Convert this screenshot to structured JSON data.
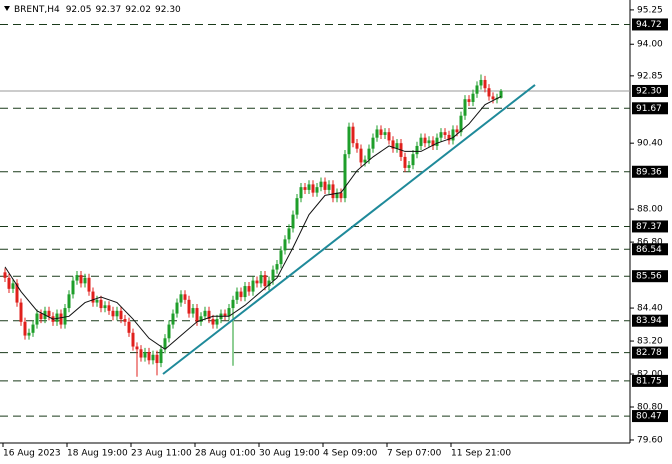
{
  "chart_data": {
    "type": "candlestick",
    "title": "BRENT,H4",
    "header_ohlc": [
      "92.05",
      "92.37",
      "92.02",
      "92.30"
    ],
    "categories": [
      "16 Aug 2023",
      null,
      null,
      null,
      null,
      null,
      null,
      null,
      null,
      null,
      null,
      null,
      null,
      null,
      null,
      null,
      "18 Aug 19:00",
      null,
      null,
      null,
      null,
      null,
      null,
      null,
      null,
      null,
      null,
      null,
      null,
      null,
      null,
      null,
      "23 Aug 11:00",
      null,
      null,
      null,
      null,
      null,
      null,
      null,
      null,
      null,
      null,
      null,
      null,
      null,
      null,
      null,
      "28 Aug 01:00",
      null,
      null,
      null,
      null,
      null,
      null,
      null,
      null,
      null,
      null,
      null,
      null,
      null,
      null,
      null,
      "30 Aug 19:00",
      null,
      null,
      null,
      null,
      null,
      null,
      null,
      null,
      null,
      null,
      null,
      null,
      null,
      null,
      null,
      "4 Sep 09:00",
      null,
      null,
      null,
      null,
      null,
      null,
      null,
      null,
      null,
      null,
      null,
      null,
      null,
      null,
      null,
      "7 Sep 07:00",
      null,
      null,
      null,
      null,
      null,
      null,
      null,
      null,
      null,
      null,
      null,
      null,
      null,
      null,
      null,
      "11 Sep 21:00",
      null,
      null,
      null,
      null,
      null,
      null,
      null,
      null,
      null,
      null,
      null,
      null
    ],
    "open": [
      85.7,
      85.5,
      85.1,
      85.3,
      84.6,
      83.9,
      83.4,
      83.5,
      83.8,
      84.2,
      84.0,
      84.3,
      84.1,
      83.9,
      84.2,
      83.8,
      84.4,
      84.9,
      85.4,
      85.6,
      85.3,
      85.5,
      85.0,
      84.6,
      84.7,
      84.4,
      84.5,
      84.3,
      84.1,
      84.3,
      84.0,
      83.9,
      83.5,
      83.0,
      82.9,
      82.6,
      82.8,
      82.5,
      82.7,
      82.4,
      82.9,
      83.3,
      83.8,
      84.2,
      84.6,
      84.9,
      84.7,
      84.2,
      84.4,
      83.9,
      84.1,
      84.3,
      84.0,
      83.8,
      84.0,
      84.2,
      84.1,
      84.4,
      84.7,
      85.0,
      84.8,
      85.2,
      85.0,
      85.4,
      85.3,
      85.6,
      85.2,
      85.4,
      85.8,
      86.0,
      86.5,
      86.9,
      87.3,
      87.8,
      88.4,
      88.8,
      88.7,
      88.9,
      88.6,
      88.8,
      89.0,
      88.7,
      88.9,
      88.4,
      88.6,
      88.4,
      90.0,
      91.0,
      90.4,
      90.2,
      89.7,
      89.8,
      90.2,
      90.6,
      90.9,
      90.7,
      90.8,
      90.5,
      90.2,
      90.4,
      89.9,
      89.5,
      89.6,
      90.0,
      90.3,
      90.6,
      90.4,
      90.5,
      90.3,
      90.6,
      90.8,
      90.7,
      90.5,
      90.9,
      90.8,
      91.4,
      92.0,
      91.9,
      92.2,
      92.5,
      92.7,
      92.4,
      92.1,
      92.0,
      92.05
    ],
    "high": [
      85.85,
      85.65,
      85.45,
      85.45,
      84.75,
      84.05,
      83.65,
      83.95,
      84.35,
      84.35,
      84.45,
      84.45,
      84.25,
      84.35,
      84.35,
      84.55,
      85.05,
      85.55,
      85.75,
      85.75,
      85.65,
      85.65,
      85.15,
      84.85,
      84.85,
      84.65,
      84.65,
      84.45,
      84.45,
      84.45,
      84.15,
      84.05,
      83.65,
      83.15,
      83.05,
      82.95,
      82.95,
      82.85,
      82.85,
      83.05,
      83.45,
      83.95,
      84.35,
      84.75,
      85.05,
      85.05,
      84.85,
      84.55,
      84.55,
      84.25,
      84.45,
      84.45,
      84.15,
      84.15,
      84.35,
      84.35,
      84.55,
      84.85,
      85.15,
      85.15,
      85.35,
      85.35,
      85.55,
      85.55,
      85.75,
      85.75,
      85.55,
      85.95,
      86.15,
      86.65,
      87.05,
      87.45,
      87.95,
      88.55,
      88.95,
      88.95,
      89.05,
      89.05,
      88.95,
      89.15,
      89.15,
      89.05,
      89.05,
      88.75,
      88.75,
      90.15,
      91.15,
      91.15,
      90.55,
      90.35,
      89.95,
      90.35,
      90.75,
      91.05,
      91.05,
      90.95,
      90.95,
      90.65,
      90.55,
      90.55,
      90.05,
      89.75,
      90.15,
      90.45,
      90.75,
      90.75,
      90.65,
      90.65,
      90.75,
      90.95,
      90.95,
      90.85,
      91.05,
      91.05,
      91.55,
      92.15,
      92.15,
      92.35,
      92.65,
      92.9,
      92.85,
      92.55,
      92.25,
      92.2,
      92.37
    ],
    "low": [
      85.35,
      84.95,
      84.95,
      84.45,
      83.75,
      83.25,
      83.25,
      83.35,
      83.65,
      83.85,
      83.85,
      83.95,
      83.75,
      83.75,
      83.65,
      83.65,
      84.25,
      84.75,
      85.25,
      85.15,
      85.15,
      84.85,
      84.45,
      84.45,
      84.25,
      84.25,
      84.15,
      83.95,
      83.95,
      83.85,
      83.75,
      83.35,
      82.85,
      81.9,
      82.45,
      82.45,
      82.35,
      82.35,
      81.95,
      82.25,
      82.75,
      83.15,
      83.65,
      84.05,
      84.45,
      84.55,
      84.05,
      84.05,
      83.75,
      83.75,
      83.95,
      83.85,
      83.65,
      83.65,
      83.85,
      83.95,
      83.95,
      82.3,
      84.55,
      84.65,
      84.65,
      84.85,
      84.85,
      85.15,
      85.15,
      85.05,
      85.05,
      85.25,
      85.65,
      85.85,
      86.35,
      86.75,
      87.15,
      87.65,
      88.25,
      88.55,
      88.55,
      88.45,
      88.45,
      88.65,
      88.55,
      88.55,
      88.25,
      88.25,
      88.25,
      88.25,
      89.85,
      90.25,
      90.05,
      89.55,
      89.55,
      89.65,
      90.05,
      90.45,
      90.55,
      90.55,
      90.35,
      90.05,
      90.05,
      89.75,
      89.35,
      89.35,
      89.45,
      89.85,
      90.15,
      90.25,
      90.25,
      90.15,
      90.15,
      90.45,
      90.55,
      90.35,
      90.35,
      90.65,
      90.65,
      91.25,
      91.75,
      91.75,
      92.05,
      92.35,
      92.25,
      91.95,
      91.85,
      91.85,
      92.02
    ],
    "close": [
      85.5,
      85.1,
      85.3,
      84.6,
      83.9,
      83.4,
      83.5,
      83.8,
      84.2,
      84.0,
      84.3,
      84.1,
      83.9,
      84.2,
      83.8,
      84.4,
      84.9,
      85.4,
      85.6,
      85.3,
      85.5,
      85.0,
      84.6,
      84.7,
      84.4,
      84.5,
      84.3,
      84.1,
      84.3,
      84.0,
      83.9,
      83.5,
      83.0,
      82.9,
      82.6,
      82.8,
      82.5,
      82.7,
      82.4,
      82.9,
      83.3,
      83.8,
      84.2,
      84.6,
      84.9,
      84.7,
      84.2,
      84.4,
      83.9,
      84.1,
      84.3,
      84.0,
      83.8,
      84.0,
      84.2,
      84.1,
      84.4,
      84.7,
      85.0,
      84.8,
      85.2,
      85.0,
      85.4,
      85.3,
      85.6,
      85.2,
      85.4,
      85.8,
      86.0,
      86.5,
      86.9,
      87.3,
      87.8,
      88.4,
      88.8,
      88.7,
      88.9,
      88.6,
      88.8,
      89.0,
      88.7,
      88.9,
      88.4,
      88.6,
      88.4,
      90.0,
      91.0,
      90.4,
      90.2,
      89.7,
      89.8,
      90.2,
      90.6,
      90.9,
      90.7,
      90.8,
      90.5,
      90.2,
      90.4,
      89.9,
      89.5,
      89.6,
      90.0,
      90.3,
      90.6,
      90.4,
      90.5,
      90.3,
      90.6,
      90.8,
      90.7,
      90.5,
      90.9,
      90.8,
      91.4,
      92.0,
      91.9,
      92.2,
      92.5,
      92.7,
      92.4,
      92.1,
      92.0,
      92.05,
      92.3
    ],
    "up_color": "#1e9e2a",
    "down_color": "#e0201c",
    "moving_average": {
      "x": [
        0,
        4,
        8,
        12,
        16,
        20,
        24,
        28,
        32,
        36,
        40,
        44,
        48,
        52,
        56,
        60,
        64,
        68,
        72,
        76,
        80,
        84,
        88,
        92,
        96,
        100,
        104,
        108,
        112,
        116,
        120,
        124
      ],
      "values": [
        85.9,
        85.0,
        84.3,
        84.0,
        84.1,
        84.6,
        84.8,
        84.6,
        84.0,
        83.3,
        82.9,
        83.4,
        83.9,
        84.1,
        84.1,
        84.5,
        85.0,
        85.5,
        86.6,
        87.8,
        88.5,
        88.6,
        89.4,
        89.9,
        90.3,
        90.1,
        90.1,
        90.4,
        90.6,
        91.1,
        91.8,
        92.1
      ],
      "color": "#111111"
    },
    "trendline": {
      "x": [
        39.5,
        132.5
      ],
      "values": [
        82.0,
        92.52
      ],
      "color": "#1f8a9a"
    },
    "levels": [
      94.72,
      91.67,
      89.36,
      87.37,
      86.54,
      85.56,
      83.94,
      82.78,
      81.75,
      80.47
    ],
    "current_price": {
      "value": 92.3,
      "label": "92.30"
    },
    "ylim": [
      79.49,
      95.61
    ],
    "yticks": [
      {
        "value": 95.25,
        "label": "95.25"
      },
      {
        "value": 94,
        "label": "94.00"
      },
      {
        "value": 92.85,
        "label": "92.85"
      },
      {
        "value": 90.4,
        "label": "90.40"
      },
      {
        "value": 88,
        "label": "88.00"
      },
      {
        "value": 86.8,
        "label": "86.80"
      },
      {
        "value": 84.4,
        "label": "84.40"
      },
      {
        "value": 83.2,
        "label": "83.20"
      },
      {
        "value": 82,
        "label": "82.00"
      },
      {
        "value": 80.8,
        "label": "80.80"
      },
      {
        "value": 79.6,
        "label": "79.60"
      }
    ]
  }
}
